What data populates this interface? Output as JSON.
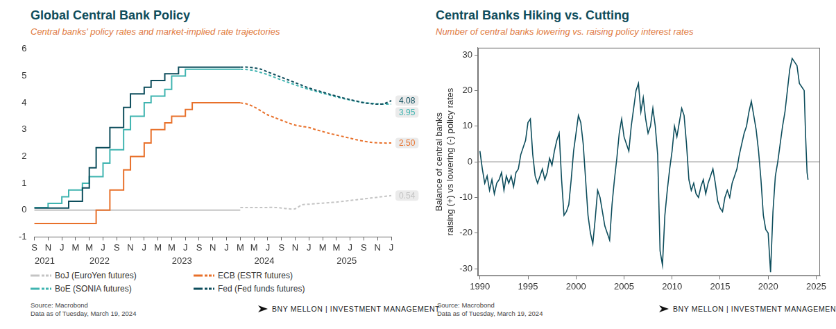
{
  "chart_data": [
    {
      "type": "line",
      "title": "Global Central Bank Policy",
      "subtitle": "Central banks' policy rates and market-implied rate trajectories",
      "categories": [
        "S",
        null,
        "N",
        null,
        "J",
        null,
        "M",
        null,
        "M",
        null,
        "J",
        null,
        "S",
        null,
        "N",
        null,
        "J",
        null,
        "M",
        null,
        "M",
        null,
        "J",
        null,
        "S",
        null,
        "N",
        null,
        "J",
        null,
        "M",
        null,
        "M",
        null,
        "J",
        null,
        "S",
        null,
        "N",
        null,
        "J",
        null,
        "M",
        null,
        "M",
        null,
        "J",
        null,
        "S",
        null,
        "N",
        null,
        "J"
      ],
      "x_groups": [
        {
          "label": "2021",
          "first": 0,
          "last": 3
        },
        {
          "label": "2022",
          "first": 4,
          "last": 15
        },
        {
          "label": "2023",
          "first": 16,
          "last": 27
        },
        {
          "label": "2024",
          "first": 28,
          "last": 39
        },
        {
          "label": "2025",
          "first": 40,
          "last": 51
        }
      ],
      "series": [
        {
          "name": "BoJ (EuroYen futures)",
          "color": "#c4c4c4",
          "values": [
            0,
            0,
            0,
            0,
            0,
            0,
            0,
            0,
            0,
            0,
            0,
            0,
            0,
            0,
            0,
            0,
            0,
            0,
            0,
            0,
            0,
            0,
            0,
            0,
            0,
            0,
            0,
            0,
            0,
            0,
            0,
            null,
            null,
            null,
            null,
            null,
            null,
            null,
            null,
            null,
            null,
            null,
            null,
            null,
            null,
            null,
            null,
            null,
            null,
            null,
            null,
            null,
            null
          ],
          "projection": [
            null,
            null,
            null,
            null,
            null,
            null,
            null,
            null,
            null,
            null,
            null,
            null,
            null,
            null,
            null,
            null,
            null,
            null,
            null,
            null,
            null,
            null,
            null,
            null,
            null,
            null,
            null,
            null,
            null,
            null,
            0.1,
            0.1,
            0.1,
            0.1,
            0.1,
            0.1,
            0.08,
            0.05,
            0.05,
            0.2,
            0.22,
            0.24,
            0.26,
            0.28,
            0.3,
            0.33,
            0.36,
            0.39,
            0.42,
            0.45,
            0.48,
            0.51,
            0.54
          ],
          "end_label": "0.54"
        },
        {
          "name": "ECB (ESTR futures)",
          "color": "#e8702a",
          "values": [
            -0.5,
            -0.5,
            -0.5,
            -0.5,
            -0.5,
            -0.5,
            -0.5,
            -0.5,
            -0.5,
            -0.5,
            0,
            0,
            0.75,
            0.75,
            1.5,
            2.0,
            2.0,
            2.5,
            3.0,
            3.0,
            3.25,
            3.5,
            3.5,
            3.75,
            4.0,
            4.0,
            4.0,
            4.0,
            4.0,
            4.0,
            4.0,
            null,
            null,
            null,
            null,
            null,
            null,
            null,
            null,
            null,
            null,
            null,
            null,
            null,
            null,
            null,
            null,
            null,
            null,
            null,
            null,
            null,
            null
          ],
          "projection": [
            null,
            null,
            null,
            null,
            null,
            null,
            null,
            null,
            null,
            null,
            null,
            null,
            null,
            null,
            null,
            null,
            null,
            null,
            null,
            null,
            null,
            null,
            null,
            null,
            null,
            null,
            null,
            null,
            null,
            null,
            4.0,
            3.95,
            3.85,
            3.7,
            3.55,
            3.45,
            3.35,
            3.25,
            3.17,
            3.12,
            3.08,
            3.0,
            2.93,
            2.86,
            2.8,
            2.74,
            2.68,
            2.62,
            2.57,
            2.53,
            2.51,
            2.5,
            2.5
          ],
          "end_label": "2.50"
        },
        {
          "name": "BoE (SONIA futures)",
          "color": "#3fb4b0",
          "values": [
            0.1,
            0.1,
            0.1,
            0.25,
            0.25,
            0.5,
            0.75,
            0.75,
            1.0,
            1.25,
            1.25,
            1.75,
            2.25,
            2.25,
            3.0,
            3.5,
            3.5,
            4.0,
            4.25,
            4.25,
            4.5,
            5.0,
            5.0,
            5.25,
            5.25,
            5.25,
            5.25,
            5.25,
            5.25,
            5.25,
            5.25,
            null,
            null,
            null,
            null,
            null,
            null,
            null,
            null,
            null,
            null,
            null,
            null,
            null,
            null,
            null,
            null,
            null,
            null,
            null,
            null,
            null,
            null
          ],
          "projection": [
            null,
            null,
            null,
            null,
            null,
            null,
            null,
            null,
            null,
            null,
            null,
            null,
            null,
            null,
            null,
            null,
            null,
            null,
            null,
            null,
            null,
            null,
            null,
            null,
            null,
            null,
            null,
            null,
            null,
            null,
            5.25,
            5.24,
            5.2,
            5.13,
            5.05,
            4.95,
            4.85,
            4.76,
            4.67,
            4.58,
            4.5,
            4.43,
            4.36,
            4.29,
            4.22,
            4.16,
            4.1,
            4.05,
            4.01,
            3.98,
            3.96,
            3.95,
            3.95
          ],
          "end_label": "3.95"
        },
        {
          "name": "Fed (Fed funds futures)",
          "color": "#0d4d5c",
          "values": [
            0.08,
            0.08,
            0.08,
            0.08,
            0.08,
            0.08,
            0.33,
            0.33,
            0.83,
            1.58,
            2.33,
            2.33,
            3.08,
            3.08,
            3.83,
            4.33,
            4.33,
            4.58,
            4.83,
            4.83,
            5.08,
            5.08,
            5.33,
            5.33,
            5.33,
            5.33,
            5.33,
            5.33,
            5.33,
            5.33,
            5.33,
            null,
            null,
            null,
            null,
            null,
            null,
            null,
            null,
            null,
            null,
            null,
            null,
            null,
            null,
            null,
            null,
            null,
            null,
            null,
            null,
            null,
            null
          ],
          "projection": [
            null,
            null,
            null,
            null,
            null,
            null,
            null,
            null,
            null,
            null,
            null,
            null,
            null,
            null,
            null,
            null,
            null,
            null,
            null,
            null,
            null,
            null,
            null,
            null,
            null,
            null,
            null,
            null,
            null,
            null,
            5.33,
            5.33,
            5.3,
            5.25,
            5.15,
            5.05,
            4.95,
            4.85,
            4.75,
            4.65,
            4.55,
            4.47,
            4.4,
            4.32,
            4.25,
            4.18,
            4.12,
            4.06,
            4.0,
            3.97,
            3.95,
            3.97,
            4.08
          ],
          "end_label": "4.08"
        }
      ],
      "ylim": [
        -1,
        6
      ],
      "yticks": [
        -1,
        0,
        1,
        2,
        3,
        4,
        5,
        6
      ],
      "grid": false,
      "legend": "bottom",
      "source": "Source: Macrobond",
      "note": "Data as of Tuesday, March 19, 2024",
      "brand": "BNY MELLON | INVESTMENT MANAGEMENT"
    },
    {
      "type": "line",
      "title": "Central Banks Hiking vs. Cutting",
      "subtitle": "Number of central banks lowering vs. raising policy interest rates",
      "y_label": [
        "Balance of central banks",
        "raising (+) vs lowering (-) policy rates"
      ],
      "x": [
        1990,
        1990.25,
        1990.5,
        1990.75,
        1991,
        1991.25,
        1991.5,
        1991.75,
        1992,
        1992.25,
        1992.5,
        1992.75,
        1993,
        1993.25,
        1993.5,
        1993.75,
        1994,
        1994.25,
        1994.5,
        1994.75,
        1995,
        1995.25,
        1995.5,
        1995.75,
        1996,
        1996.25,
        1996.5,
        1996.75,
        1997,
        1997.25,
        1997.5,
        1997.75,
        1998,
        1998.25,
        1998.5,
        1998.75,
        1999,
        1999.25,
        1999.5,
        1999.75,
        2000,
        2000.25,
        2000.5,
        2000.75,
        2001,
        2001.25,
        2001.5,
        2001.75,
        2002,
        2002.25,
        2002.5,
        2002.75,
        2003,
        2003.25,
        2003.5,
        2003.75,
        2004,
        2004.25,
        2004.5,
        2004.75,
        2005,
        2005.25,
        2005.5,
        2005.75,
        2006,
        2006.25,
        2006.5,
        2006.75,
        2007,
        2007.25,
        2007.5,
        2007.75,
        2008,
        2008.25,
        2008.5,
        2008.75,
        2009,
        2009.25,
        2009.5,
        2009.75,
        2010,
        2010.25,
        2010.5,
        2010.75,
        2011,
        2011.25,
        2011.5,
        2011.75,
        2012,
        2012.25,
        2012.5,
        2012.75,
        2013,
        2013.25,
        2013.5,
        2013.75,
        2014,
        2014.25,
        2014.5,
        2014.75,
        2015,
        2015.25,
        2015.5,
        2015.75,
        2016,
        2016.25,
        2016.5,
        2016.75,
        2017,
        2017.25,
        2017.5,
        2017.75,
        2018,
        2018.25,
        2018.5,
        2018.75,
        2019,
        2019.25,
        2019.5,
        2019.75,
        2020,
        2020.25,
        2020.5,
        2020.75,
        2021,
        2021.25,
        2021.5,
        2021.75,
        2022,
        2022.25,
        2022.5,
        2022.75,
        2023,
        2023.25,
        2023.5,
        2023.75,
        2023.9,
        2024.05,
        2024.15
      ],
      "values": [
        3,
        -2,
        -6,
        -4,
        -8,
        -5,
        -9,
        -6,
        -5,
        -3,
        -8,
        -4,
        -6,
        -4,
        -7,
        -3,
        -2,
        2,
        4,
        6,
        11,
        12,
        2,
        -4,
        -6,
        -4,
        -2,
        -5,
        -3,
        1,
        -1,
        3,
        6,
        8,
        -5,
        -15,
        -14,
        -12,
        -5,
        3,
        8,
        13,
        11,
        5,
        -5,
        -15,
        -20,
        -23,
        -16,
        -8,
        -10,
        -14,
        -18,
        -20,
        -22,
        -12,
        -5,
        1,
        8,
        12,
        7,
        5,
        3,
        10,
        15,
        20,
        22,
        14,
        18,
        12,
        8,
        10,
        15,
        10,
        2,
        -25,
        -29,
        -15,
        -8,
        -2,
        3,
        10,
        7,
        11,
        15,
        13,
        5,
        -5,
        -8,
        -6,
        -9,
        -10,
        -7,
        -5,
        -9,
        -6,
        -4,
        -2,
        -6,
        -11,
        -13,
        -14,
        -10,
        -8,
        -10,
        -6,
        -4,
        -2,
        2,
        5,
        8,
        10,
        14,
        17,
        13,
        9,
        3,
        -5,
        -15,
        -19,
        -20,
        -31,
        -14,
        -4,
        0,
        5,
        10,
        14,
        20,
        26,
        29,
        28,
        27,
        22,
        21,
        20,
        7,
        -3,
        -5
      ],
      "color": "#0d4d5c",
      "xlim": [
        1989.8,
        2025.4
      ],
      "xticks": [
        1990,
        1995,
        2000,
        2005,
        2010,
        2015,
        2020,
        2025
      ],
      "ylim": [
        -32,
        32
      ],
      "yticks": [
        -30,
        -20,
        -10,
        0,
        10,
        20,
        30
      ],
      "baseline": 0,
      "grid": false,
      "source": "Source: Macrobond",
      "note": "Data as of Tuesday, March 19, 2024",
      "brand": "BNY MELLON | INVESTMENT MANAGEMENT"
    }
  ]
}
